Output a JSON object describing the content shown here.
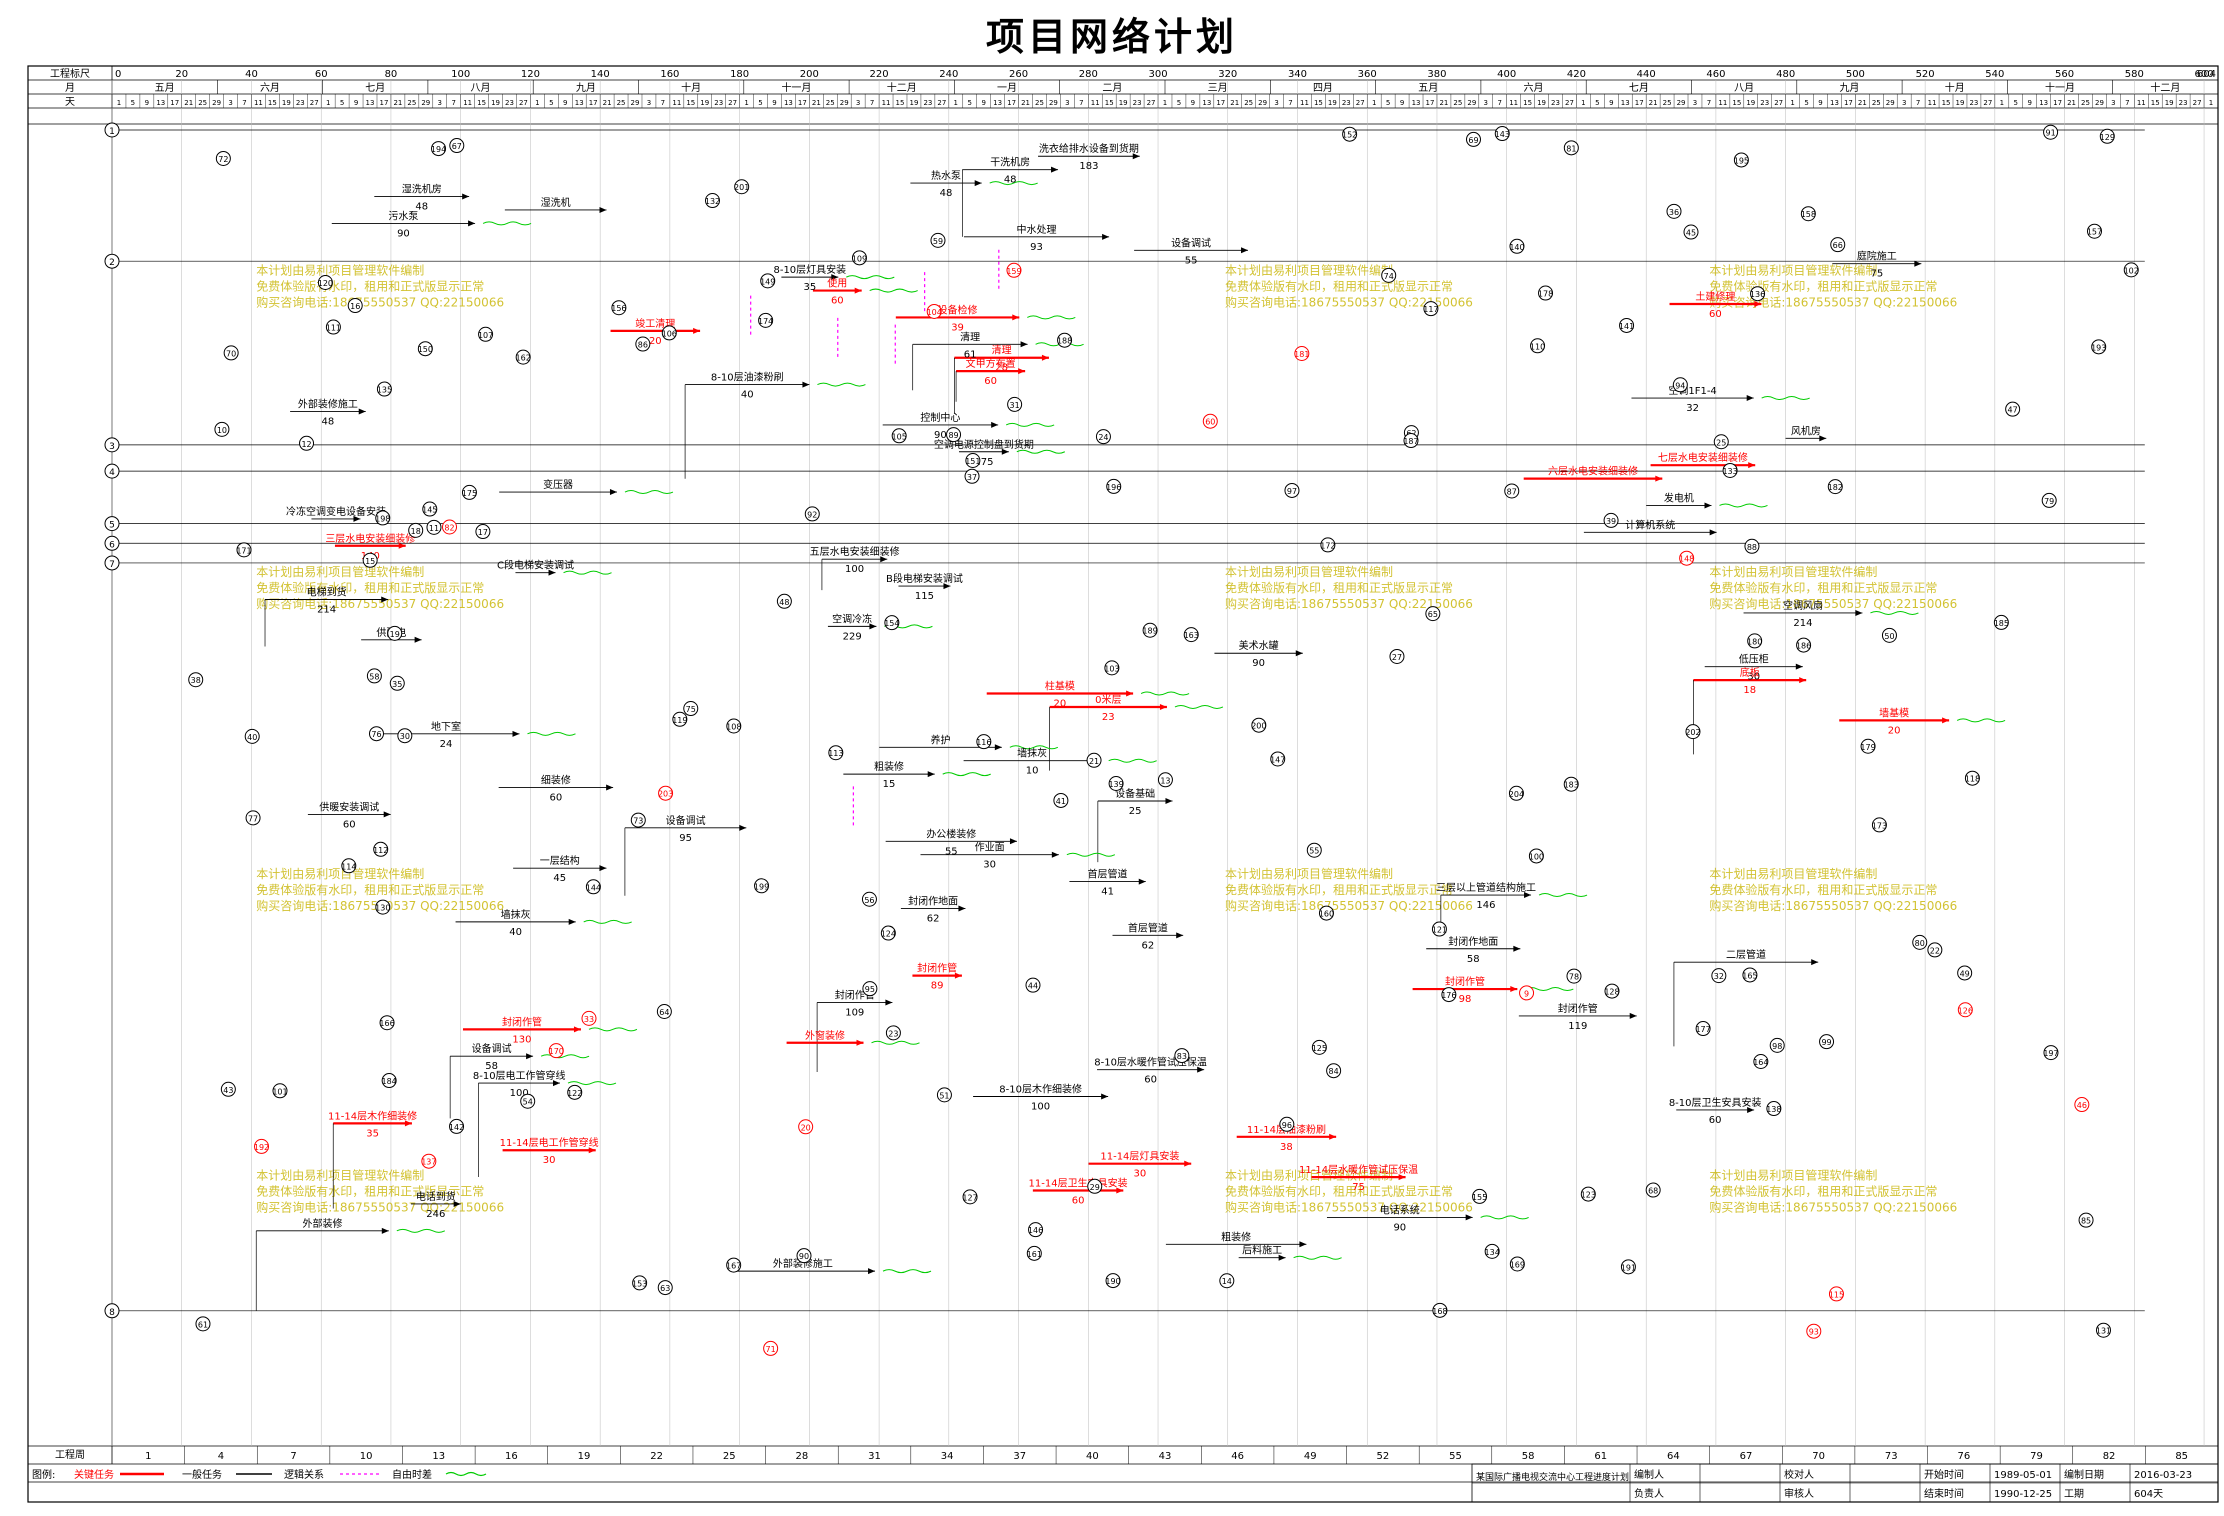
{
  "title": "项目网络计划",
  "header": {
    "scale_label": "工程标尺",
    "month_label": "月",
    "day_label": "天",
    "scale_ticks": [
      "0",
      "20",
      "40",
      "60",
      "80",
      "100",
      "120",
      "140",
      "160",
      "180",
      "200",
      "220",
      "240",
      "260",
      "280",
      "300",
      "320",
      "340",
      "360",
      "380",
      "400",
      "420",
      "440",
      "460",
      "480",
      "500",
      "520",
      "540",
      "560",
      "580",
      "600"
    ],
    "end_tick": "604",
    "months": [
      "五月",
      "六月",
      "七月",
      "八月",
      "九月",
      "十月",
      "十一月",
      "十二月",
      "一月",
      "二月",
      "三月",
      "四月",
      "五月",
      "六月",
      "七月",
      "八月",
      "九月",
      "十月",
      "十一月",
      "十二月"
    ]
  },
  "footer": {
    "week_label": "工程周",
    "week_ticks": [
      "1",
      "4",
      "7",
      "10",
      "13",
      "16",
      "19",
      "22",
      "25",
      "28",
      "31",
      "34",
      "37",
      "40",
      "43",
      "46",
      "49",
      "52",
      "55",
      "58",
      "61",
      "64",
      "67",
      "70",
      "73",
      "76",
      "79",
      "82",
      "85"
    ]
  },
  "legend": {
    "label": "图例:",
    "items": [
      "关键任务",
      "一般任务",
      "逻辑关系",
      "自由时差"
    ]
  },
  "info": {
    "project": "某国际广播电视交流中心工程进度计划",
    "compiler_label": "编制人",
    "checker_label": "校对人",
    "start_label": "开始时间",
    "start_value": "1989-05-01",
    "date_label": "编制日期",
    "date_value": "2016-03-23",
    "owner_label": "负责人",
    "reviewer_label": "审核人",
    "end_label": "结束时间",
    "end_value": "1990-12-25",
    "duration_label": "工期",
    "duration_value": "604天"
  },
  "watermark": [
    "本计划由易利项目管理软件编制",
    "免费体验版有水印，租用和正式版显示正常",
    "购买咨询电话:18675550537 QQ:22150066"
  ],
  "colors": {
    "critical": "#ff0000",
    "normal": "#000000",
    "free_float": "#00cc00",
    "logic": "#ff00ff",
    "watermark": "#c8b400"
  },
  "network": {
    "row_labels": [
      "1",
      "2",
      "3",
      "4",
      "5",
      "6",
      "7",
      "8"
    ],
    "task_labels": [
      {
        "t": "洗衣给排水设备到货期",
        "d": "183",
        "c": "k"
      },
      {
        "t": "干洗机房",
        "d": "48",
        "c": "k"
      },
      {
        "t": "热水泵",
        "d": "48",
        "c": "k"
      },
      {
        "t": "湿洗机房",
        "d": "48",
        "c": "k"
      },
      {
        "t": "湿洗机",
        "d": "",
        "c": "k"
      },
      {
        "t": "污水泵",
        "d": "90",
        "c": "k"
      },
      {
        "t": "中水处理",
        "d": "93",
        "c": "k"
      },
      {
        "t": "设备调试",
        "d": "55",
        "c": "k"
      },
      {
        "t": "庭院施工",
        "d": "75",
        "c": "k"
      },
      {
        "t": "8-10层灯具安装",
        "d": "35",
        "c": "k"
      },
      {
        "t": "使用",
        "d": "60",
        "c": "r"
      },
      {
        "t": "土建修理",
        "d": "60",
        "c": "r"
      },
      {
        "t": "设备检修",
        "d": "39",
        "c": "r"
      },
      {
        "t": "竣工清理",
        "d": "20",
        "c": "r"
      },
      {
        "t": "清理",
        "d": "61",
        "c": "k"
      },
      {
        "t": "清理",
        "d": "28",
        "c": "r"
      },
      {
        "t": "文甲方布置",
        "d": "60",
        "c": "r"
      },
      {
        "t": "8-10层油漆粉刷",
        "d": "40",
        "c": "k"
      },
      {
        "t": "空调1F1-4",
        "d": "32",
        "c": "k"
      },
      {
        "t": "外部装修施工",
        "d": "48",
        "c": "k"
      },
      {
        "t": "控制中心",
        "d": "90",
        "c": "k"
      },
      {
        "t": "风机房",
        "d": "",
        "c": "k"
      },
      {
        "t": "空调电源控制盘到货期",
        "d": "275",
        "c": "k"
      },
      {
        "t": "七层水电安装细装修",
        "d": "",
        "c": "r"
      },
      {
        "t": "六层水电安装细装修",
        "d": "",
        "c": "r"
      },
      {
        "t": "变压器",
        "d": "",
        "c": "k"
      },
      {
        "t": "发电机",
        "d": "",
        "c": "k"
      },
      {
        "t": "冷冻空调变电设备安装",
        "d": "",
        "c": "k"
      },
      {
        "t": "计算机系统",
        "d": "",
        "c": "k"
      },
      {
        "t": "三层水电安装细装修",
        "d": "140",
        "c": "r"
      },
      {
        "t": "五层水电安装细装修",
        "d": "100",
        "c": "k"
      },
      {
        "t": "C段电梯安装调试",
        "d": "",
        "c": "k"
      },
      {
        "t": "B段电梯安装调试",
        "d": "115",
        "c": "k"
      },
      {
        "t": "电梯到货",
        "d": "214",
        "c": "k"
      },
      {
        "t": "空调风扇",
        "d": "214",
        "c": "k"
      },
      {
        "t": "空调冷冻",
        "d": "229",
        "c": "k"
      },
      {
        "t": "供配电",
        "d": "",
        "c": "k"
      },
      {
        "t": "美术水罐",
        "d": "90",
        "c": "k"
      },
      {
        "t": "低压柜",
        "d": "30",
        "c": "k"
      },
      {
        "t": "底板",
        "d": "18",
        "c": "r"
      },
      {
        "t": "柱基模",
        "d": "20",
        "c": "r"
      },
      {
        "t": "0米层",
        "d": "23",
        "c": "r"
      },
      {
        "t": "墙基模",
        "d": "20",
        "c": "r"
      },
      {
        "t": "地下室",
        "d": "24",
        "c": "k"
      },
      {
        "t": "养护",
        "d": "",
        "c": "k"
      },
      {
        "t": "墙抹灰",
        "d": "10",
        "c": "k"
      },
      {
        "t": "粗装修",
        "d": "15",
        "c": "k"
      },
      {
        "t": "细装修",
        "d": "60",
        "c": "k"
      },
      {
        "t": "设备基础",
        "d": "25",
        "c": "k"
      },
      {
        "t": "供暖安装调试",
        "d": "60",
        "c": "k"
      },
      {
        "t": "设备调试",
        "d": "95",
        "c": "k"
      },
      {
        "t": "办公楼装修",
        "d": "55",
        "c": "k"
      },
      {
        "t": "作业面",
        "d": "30",
        "c": "k"
      },
      {
        "t": "一层结构",
        "d": "45",
        "c": "k"
      },
      {
        "t": "首层管道",
        "d": "41",
        "c": "k"
      },
      {
        "t": "三层以上管道结构施工",
        "d": "146",
        "c": "k"
      },
      {
        "t": "封闭作地面",
        "d": "62",
        "c": "k"
      },
      {
        "t": "墙抹灰",
        "d": "40",
        "c": "k"
      },
      {
        "t": "首层管道",
        "d": "62",
        "c": "k"
      },
      {
        "t": "封闭作地面",
        "d": "58",
        "c": "k"
      },
      {
        "t": "二层管道",
        "d": "",
        "c": "k"
      },
      {
        "t": "封闭作管",
        "d": "89",
        "c": "r"
      },
      {
        "t": "封闭作管",
        "d": "98",
        "c": "r"
      },
      {
        "t": "封闭作管",
        "d": "109",
        "c": "k"
      },
      {
        "t": "封闭作管",
        "d": "119",
        "c": "k"
      },
      {
        "t": "封闭作管",
        "d": "130",
        "c": "r"
      },
      {
        "t": "外窗装修",
        "d": "",
        "c": "r"
      },
      {
        "t": "设备调试",
        "d": "58",
        "c": "k"
      },
      {
        "t": "8-10层水暖作管试压保温",
        "d": "60",
        "c": "k"
      },
      {
        "t": "8-10层电工作管穿线",
        "d": "100",
        "c": "k"
      },
      {
        "t": "8-10层木作细装修",
        "d": "100",
        "c": "k"
      },
      {
        "t": "8-10层卫生安具安装",
        "d": "60",
        "c": "k"
      },
      {
        "t": "11-14层木作细装修",
        "d": "35",
        "c": "r"
      },
      {
        "t": "11-14层油漆粉刷",
        "d": "38",
        "c": "r"
      },
      {
        "t": "11-14层电工作管穿线",
        "d": "30",
        "c": "r"
      },
      {
        "t": "11-14层灯具安装",
        "d": "30",
        "c": "r"
      },
      {
        "t": "11-14层水暖作管试压保温",
        "d": "75",
        "c": "r"
      },
      {
        "t": "11-14层卫生安具安装",
        "d": "60",
        "c": "r"
      },
      {
        "t": "电话到货",
        "d": "246",
        "c": "k"
      },
      {
        "t": "电话系统",
        "d": "90",
        "c": "k"
      },
      {
        "t": "外部装修",
        "d": "",
        "c": "k"
      },
      {
        "t": "粗装修",
        "d": "",
        "c": "k"
      },
      {
        "t": "后料施工",
        "d": "",
        "c": "k"
      },
      {
        "t": "外部装修施工",
        "d": "",
        "c": "k"
      }
    ],
    "nodes": [
      "1",
      "2",
      "3",
      "4",
      "5",
      "6",
      "7",
      "8",
      "9",
      "10",
      "11",
      "12",
      "13",
      "14",
      "15",
      "16",
      "17",
      "18",
      "19",
      "20",
      "21",
      "22",
      "23",
      "24",
      "25",
      "27",
      "29",
      "30",
      "31",
      "32",
      "33",
      "35",
      "36",
      "37",
      "38",
      "39",
      "40",
      "41",
      "43",
      "44",
      "45",
      "46",
      "47",
      "48",
      "49",
      "50",
      "51",
      "54",
      "55",
      "56",
      "58",
      "59",
      "60",
      "61",
      "62",
      "63",
      "64",
      "65",
      "66",
      "67",
      "68",
      "69",
      "70",
      "71",
      "72",
      "73",
      "74",
      "75",
      "76",
      "77",
      "78",
      "79",
      "80",
      "81",
      "82",
      "83",
      "84",
      "85",
      "86",
      "87",
      "88",
      "89",
      "90",
      "91",
      "92",
      "93",
      "94",
      "95",
      "96",
      "97",
      "98",
      "99",
      "100",
      "101",
      "102",
      "103",
      "104",
      "105",
      "106",
      "107",
      "108",
      "109",
      "110",
      "111",
      "112",
      "113",
      "114",
      "115",
      "116",
      "117",
      "118",
      "119",
      "120",
      "121",
      "122",
      "123",
      "124",
      "125",
      "126",
      "127",
      "128",
      "129",
      "130",
      "131",
      "132",
      "133",
      "134",
      "135",
      "136",
      "137",
      "138",
      "139",
      "140",
      "141",
      "142",
      "143",
      "144",
      "145",
      "146",
      "147",
      "148",
      "149",
      "150",
      "151",
      "152",
      "153",
      "154",
      "155",
      "156",
      "157",
      "158",
      "159",
      "160",
      "161",
      "162",
      "163",
      "164",
      "165",
      "166",
      "167",
      "168",
      "169",
      "170",
      "171",
      "172",
      "173",
      "174",
      "175",
      "176",
      "177",
      "178",
      "179",
      "180",
      "181",
      "182",
      "183",
      "184",
      "185",
      "186",
      "187",
      "188",
      "189",
      "190",
      "191",
      "192",
      "193",
      "194",
      "195",
      "196",
      "197",
      "198",
      "199",
      "200",
      "201",
      "202",
      "203",
      "204"
    ]
  }
}
